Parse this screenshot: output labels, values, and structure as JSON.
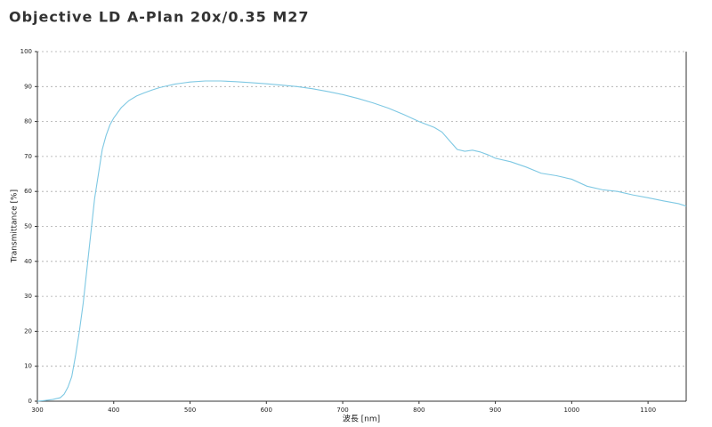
{
  "chart_data": {
    "type": "line",
    "title": "Objective LD A-Plan 20x/0.35 M27",
    "x_label": "波長 [nm]",
    "y_label": "Transmittance [%]",
    "x": [
      300,
      310,
      320,
      330,
      335,
      340,
      345,
      350,
      355,
      360,
      365,
      370,
      375,
      380,
      385,
      390,
      395,
      400,
      410,
      420,
      430,
      440,
      450,
      460,
      470,
      480,
      490,
      500,
      520,
      540,
      560,
      580,
      600,
      620,
      640,
      660,
      680,
      700,
      720,
      740,
      760,
      780,
      800,
      820,
      830,
      840,
      850,
      860,
      870,
      880,
      890,
      900,
      920,
      940,
      960,
      980,
      1000,
      1020,
      1040,
      1060,
      1080,
      1100,
      1120,
      1140,
      1150
    ],
    "series": [
      {
        "name": "Transmittance",
        "color": "#7ec8e3",
        "values": [
          0,
          0.2,
          0.5,
          1,
          2,
          4,
          7,
          13,
          20,
          28,
          38,
          48,
          58,
          65,
          72,
          76,
          79,
          81,
          84,
          86,
          87.3,
          88.2,
          89,
          89.7,
          90.2,
          90.7,
          91,
          91.3,
          91.6,
          91.6,
          91.4,
          91.1,
          90.8,
          90.4,
          90,
          89.4,
          88.6,
          87.7,
          86.6,
          85.3,
          83.8,
          82,
          80,
          78.3,
          77,
          74.5,
          72,
          71.5,
          71.8,
          71.3,
          70.5,
          69.5,
          68.5,
          67,
          65.2,
          64.5,
          63.5,
          61.5,
          60.5,
          60,
          59,
          58.2,
          57.3,
          56.5,
          55.8
        ]
      }
    ],
    "xlim": [
      300,
      1150
    ],
    "xticks": [
      300,
      400,
      500,
      600,
      700,
      800,
      900,
      1000,
      1100
    ],
    "ylim": [
      0,
      100
    ],
    "yticks": [
      0,
      10,
      20,
      30,
      40,
      50,
      60,
      70,
      80,
      90,
      100
    ],
    "grid": true
  }
}
